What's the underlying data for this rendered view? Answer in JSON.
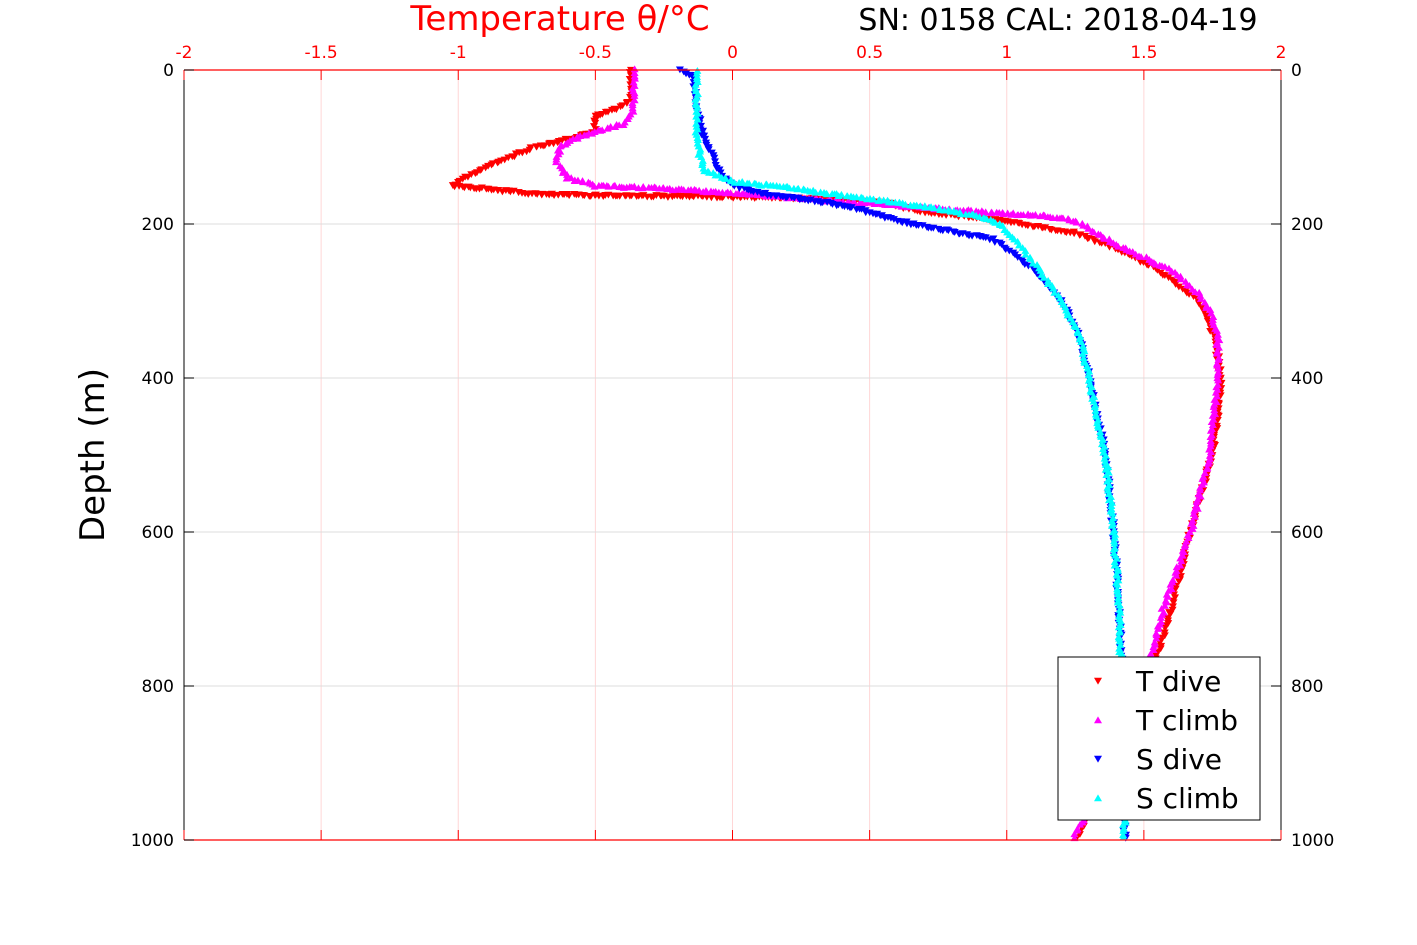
{
  "chart_data": {
    "type": "scatter",
    "title": "SN: 0158  CAL: 2018-04-19",
    "xlabel": "Temperature θ/°C",
    "ylabel": "Depth (m)",
    "xlim": [
      -2,
      2
    ],
    "ylim": [
      0,
      1000
    ],
    "y_reversed": true,
    "grid": true,
    "xticks": [
      "-2",
      "-1.5",
      "-1",
      "-0.5",
      "0",
      "0.5",
      "1",
      "1.5",
      "2"
    ],
    "xtick_values": [
      -2,
      -1.5,
      -1,
      -0.5,
      0,
      0.5,
      1,
      1.5,
      2
    ],
    "yticks": [
      "0",
      "200",
      "400",
      "600",
      "800",
      "1000"
    ],
    "ytick_values": [
      0,
      200,
      400,
      600,
      800,
      1000
    ],
    "legend_position": "bottom-right",
    "series": [
      {
        "name": "T dive",
        "marker": "triangle-down",
        "color": "#ff0000",
        "points": [
          [
            -0.37,
            0
          ],
          [
            -0.37,
            40
          ],
          [
            -0.42,
            50
          ],
          [
            -0.5,
            60
          ],
          [
            -0.5,
            80
          ],
          [
            -0.62,
            92
          ],
          [
            -0.72,
            100
          ],
          [
            -0.85,
            120
          ],
          [
            -0.92,
            130
          ],
          [
            -1.02,
            150
          ],
          [
            -0.7,
            162
          ],
          [
            0.2,
            166
          ],
          [
            0.55,
            172
          ],
          [
            0.7,
            185
          ],
          [
            0.9,
            192
          ],
          [
            1.05,
            200
          ],
          [
            1.25,
            212
          ],
          [
            1.4,
            232
          ],
          [
            1.5,
            250
          ],
          [
            1.6,
            272
          ],
          [
            1.7,
            300
          ],
          [
            1.76,
            350
          ],
          [
            1.78,
            400
          ],
          [
            1.78,
            420
          ],
          [
            1.75,
            500
          ],
          [
            1.7,
            560
          ],
          [
            1.67,
            600
          ],
          [
            1.6,
            700
          ],
          [
            1.55,
            760
          ],
          [
            1.5,
            800
          ],
          [
            1.4,
            900
          ],
          [
            1.25,
            1000
          ]
        ]
      },
      {
        "name": "T climb",
        "marker": "triangle-up",
        "color": "#ff00ff",
        "points": [
          [
            -0.36,
            0
          ],
          [
            -0.36,
            50
          ],
          [
            -0.4,
            70
          ],
          [
            -0.5,
            80
          ],
          [
            -0.58,
            90
          ],
          [
            -0.63,
            100
          ],
          [
            -0.64,
            120
          ],
          [
            -0.6,
            140
          ],
          [
            -0.5,
            150
          ],
          [
            -0.3,
            153
          ],
          [
            -0.1,
            157
          ],
          [
            0.3,
            168
          ],
          [
            0.6,
            176
          ],
          [
            0.95,
            185
          ],
          [
            1.15,
            190
          ],
          [
            1.25,
            196
          ],
          [
            1.32,
            210
          ],
          [
            1.42,
            230
          ],
          [
            1.6,
            260
          ],
          [
            1.7,
            290
          ],
          [
            1.75,
            320
          ],
          [
            1.77,
            350
          ],
          [
            1.77,
            400
          ],
          [
            1.74,
            500
          ],
          [
            1.67,
            600
          ],
          [
            1.57,
            700
          ],
          [
            1.5,
            800
          ],
          [
            1.38,
            900
          ],
          [
            1.24,
            1000
          ]
        ]
      },
      {
        "name": "S dive",
        "marker": "triangle-down",
        "color": "#0000ff",
        "points": [
          [
            -0.19,
            0
          ],
          [
            -0.14,
            10
          ],
          [
            -0.13,
            50
          ],
          [
            -0.11,
            80
          ],
          [
            -0.09,
            100
          ],
          [
            -0.05,
            130
          ],
          [
            0.0,
            150
          ],
          [
            0.1,
            160
          ],
          [
            0.3,
            170
          ],
          [
            0.45,
            180
          ],
          [
            0.55,
            190
          ],
          [
            0.65,
            200
          ],
          [
            0.8,
            210
          ],
          [
            0.95,
            220
          ],
          [
            1.03,
            240
          ],
          [
            1.1,
            260
          ],
          [
            1.2,
            300
          ],
          [
            1.27,
            350
          ],
          [
            1.3,
            400
          ],
          [
            1.36,
            500
          ],
          [
            1.39,
            600
          ],
          [
            1.41,
            700
          ],
          [
            1.42,
            800
          ],
          [
            1.43,
            1000
          ]
        ]
      },
      {
        "name": "S climb",
        "marker": "triangle-up",
        "color": "#00ffff",
        "points": [
          [
            -0.13,
            0
          ],
          [
            -0.13,
            50
          ],
          [
            -0.13,
            80
          ],
          [
            -0.12,
            110
          ],
          [
            -0.1,
            130
          ],
          [
            0.0,
            145
          ],
          [
            0.15,
            150
          ],
          [
            0.35,
            160
          ],
          [
            0.55,
            170
          ],
          [
            0.75,
            180
          ],
          [
            0.9,
            190
          ],
          [
            0.98,
            200
          ],
          [
            1.03,
            220
          ],
          [
            1.1,
            250
          ],
          [
            1.2,
            300
          ],
          [
            1.27,
            350
          ],
          [
            1.3,
            400
          ],
          [
            1.36,
            500
          ],
          [
            1.39,
            600
          ],
          [
            1.41,
            700
          ],
          [
            1.43,
            1000
          ]
        ]
      }
    ]
  }
}
